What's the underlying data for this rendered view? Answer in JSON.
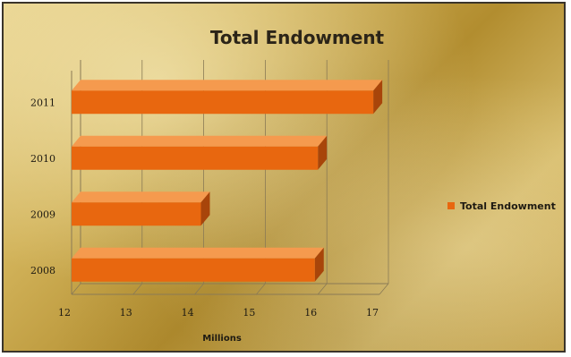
{
  "chart_data": {
    "type": "bar",
    "orientation": "horizontal",
    "three_d": true,
    "title": "Total Endowment",
    "xlabel": "Millions",
    "ylabel": "",
    "categories": [
      "2008",
      "2009",
      "2010",
      "2011"
    ],
    "series": [
      {
        "name": "Total Endowment",
        "values": [
          15.95,
          14.1,
          16.0,
          16.9
        ],
        "color": "#e8670f"
      }
    ],
    "xlim": [
      12,
      17
    ],
    "xticks": [
      "12",
      "13",
      "14",
      "15",
      "16",
      "17"
    ],
    "grid": true,
    "legend_position": "right"
  },
  "colors": {
    "bar_front": "#e8670f",
    "bar_top": "#f59a4e",
    "bar_side": "#a8450a",
    "grid": "#8a7a55",
    "background": "#d2b35a"
  }
}
